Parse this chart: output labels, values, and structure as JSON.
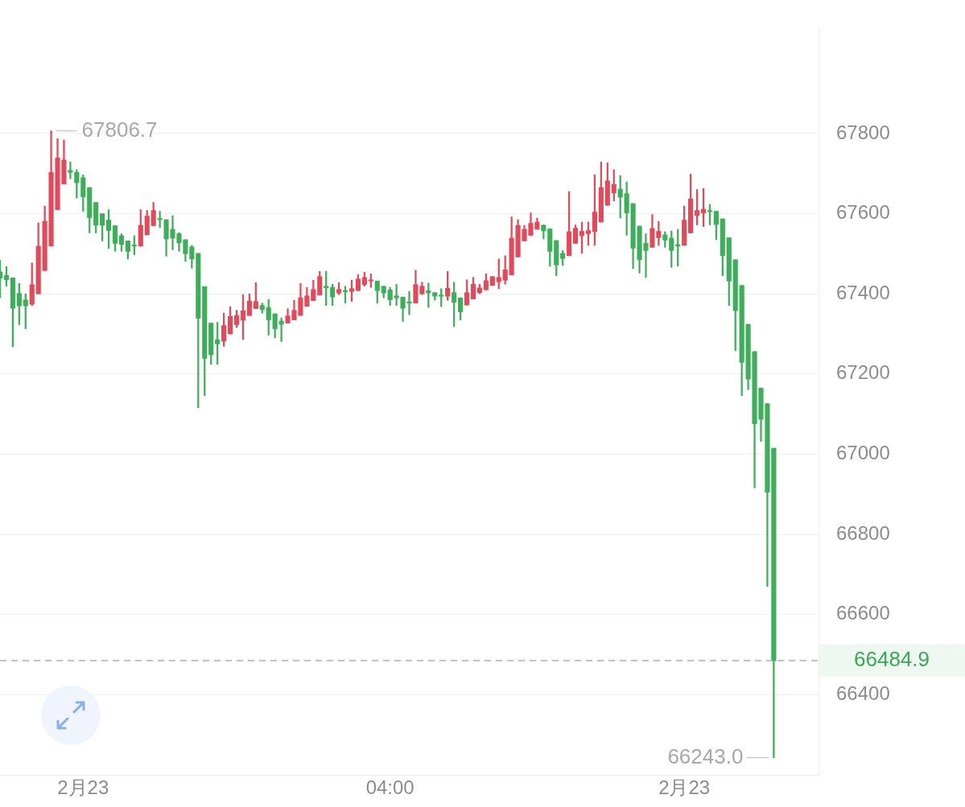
{
  "chart_data": {
    "type": "candlestick",
    "categories": [
      null,
      null,
      null,
      null,
      null,
      null,
      null,
      null,
      null,
      null,
      null,
      null,
      null,
      "2月23",
      null,
      null,
      null,
      null,
      null,
      null,
      null,
      null,
      null,
      null,
      null,
      null,
      null,
      null,
      null,
      null,
      null,
      null,
      null,
      null,
      null,
      null,
      null,
      null,
      null,
      null,
      null,
      null,
      null,
      null,
      null,
      null,
      null,
      null,
      null,
      null,
      null,
      null,
      null,
      null,
      null,
      null,
      null,
      null,
      null,
      null,
      null,
      "04:00",
      null,
      null,
      null,
      null,
      null,
      null,
      null,
      null,
      null,
      null,
      null,
      null,
      null,
      null,
      null,
      null,
      null,
      null,
      null,
      null,
      null,
      null,
      null,
      null,
      null,
      null,
      null,
      null,
      null,
      null,
      null,
      null,
      null,
      null,
      null,
      null,
      null,
      null,
      null,
      null,
      null,
      null,
      null,
      null,
      null,
      "2月23",
      null,
      null,
      null,
      null,
      null,
      null,
      null,
      null,
      null,
      null,
      null,
      null,
      null,
      null
    ],
    "ohlc": [
      [
        67455,
        67484,
        67390,
        67439
      ],
      [
        67446,
        67468,
        67419,
        67435
      ],
      [
        67440,
        67440,
        67268,
        67364
      ],
      [
        67401,
        67426,
        67323,
        67370
      ],
      [
        67385,
        67400,
        67313,
        67370
      ],
      [
        67374,
        67477,
        67371,
        67423
      ],
      [
        67400,
        67577,
        67400,
        67519
      ],
      [
        67458,
        67619,
        67458,
        67581
      ],
      [
        67519,
        67806.7,
        67519,
        67703
      ],
      [
        67610,
        67787,
        67610,
        67739
      ],
      [
        67674,
        67784,
        67674,
        67734
      ],
      [
        67708,
        67729,
        67687,
        67703
      ],
      [
        67703,
        67710,
        67639,
        67677
      ],
      [
        67690,
        67697,
        67606,
        67642
      ],
      [
        67665,
        67665,
        67552,
        67590
      ],
      [
        67628,
        67628,
        67552,
        67571
      ],
      [
        67600,
        67600,
        67532,
        67571
      ],
      [
        67584,
        67610,
        67513,
        67558
      ],
      [
        67570,
        67570,
        67506,
        67526
      ],
      [
        67545,
        67550,
        67506,
        67523
      ],
      [
        67532,
        67532,
        67487,
        67506
      ],
      [
        67522,
        67545,
        67497,
        67519
      ],
      [
        67519,
        67610,
        67519,
        67571
      ],
      [
        67547,
        67608,
        67547,
        67594
      ],
      [
        67570,
        67628,
        67570,
        67608
      ],
      [
        67588,
        67606,
        67565,
        67585
      ],
      [
        67585,
        67585,
        67494,
        67537
      ],
      [
        67561,
        67595,
        67510,
        67539
      ],
      [
        67550,
        67553,
        67506,
        67527
      ],
      [
        67535,
        67535,
        67481,
        67500
      ],
      [
        67517,
        67521,
        67464,
        67487
      ],
      [
        67501,
        67501,
        67116,
        67339
      ],
      [
        67418,
        67418,
        67146,
        67239
      ],
      [
        67327,
        67327,
        67224,
        67248
      ],
      [
        67285,
        67329,
        67224,
        67275
      ],
      [
        67282,
        67352,
        67269,
        67321
      ],
      [
        67300,
        67368,
        67300,
        67344
      ],
      [
        67323,
        67359,
        67316,
        67346
      ],
      [
        67334,
        67398,
        67286,
        67358
      ],
      [
        67346,
        67400,
        67346,
        67382
      ],
      [
        67363,
        67428,
        67363,
        67381
      ],
      [
        67371,
        67377,
        67352,
        67361
      ],
      [
        67366,
        67386,
        67297,
        67335
      ],
      [
        67350,
        67350,
        67290,
        67313
      ],
      [
        67332,
        67340,
        67281,
        67324
      ],
      [
        67327,
        67363,
        67327,
        67345
      ],
      [
        67335,
        67384,
        67335,
        67359
      ],
      [
        67346,
        67426,
        67346,
        67390
      ],
      [
        67369,
        67416,
        67369,
        67395
      ],
      [
        67383,
        67434,
        67383,
        67411
      ],
      [
        67397,
        67456,
        67397,
        67443
      ],
      [
        67419,
        67456,
        67371,
        67415
      ],
      [
        67416,
        67424,
        67371,
        67392
      ],
      [
        67402,
        67428,
        67398,
        67411
      ],
      [
        67407,
        67419,
        67377,
        67405
      ],
      [
        67406,
        67434,
        67381,
        67413
      ],
      [
        67408,
        67448,
        67408,
        67437
      ],
      [
        67423,
        67454,
        67419,
        67441
      ],
      [
        67432,
        67450,
        67416,
        67434
      ],
      [
        67432,
        67432,
        67377,
        67408
      ],
      [
        67419,
        67419,
        67390,
        67402
      ],
      [
        67410,
        67416,
        67371,
        67385
      ],
      [
        67395,
        67424,
        67371,
        67390
      ],
      [
        67392,
        67392,
        67331,
        67364
      ],
      [
        67379,
        67406,
        67348,
        67377
      ],
      [
        67377,
        67459,
        67377,
        67423
      ],
      [
        67400,
        67429,
        67398,
        67419
      ],
      [
        67408,
        67427,
        67366,
        67402
      ],
      [
        67403,
        67403,
        67384,
        67394
      ],
      [
        67397,
        67413,
        67368,
        67394
      ],
      [
        67394,
        67456,
        67384,
        67414
      ],
      [
        67403,
        67429,
        67318,
        67379
      ],
      [
        67390,
        67390,
        67335,
        67355
      ],
      [
        67372,
        67435,
        67372,
        67403
      ],
      [
        67387,
        67441,
        67387,
        67424
      ],
      [
        67403,
        67424,
        67400,
        67415
      ],
      [
        67410,
        67450,
        67410,
        67433
      ],
      [
        67421,
        67443,
        67421,
        67443
      ],
      [
        67430,
        67487,
        67413,
        67441
      ],
      [
        67434,
        67495,
        67424,
        67460
      ],
      [
        67447,
        67592,
        67447,
        67539
      ],
      [
        67492,
        67585,
        67492,
        67571
      ],
      [
        67532,
        67571,
        67532,
        67561
      ],
      [
        67546,
        67602,
        67546,
        67576
      ],
      [
        67561,
        67589,
        67561,
        67579
      ],
      [
        67571,
        67572,
        67537,
        67557
      ],
      [
        67562,
        67562,
        67469,
        67506
      ],
      [
        67533,
        67533,
        67445,
        67472
      ],
      [
        67501,
        67508,
        67471,
        67488
      ],
      [
        67495,
        67655,
        67495,
        67555
      ],
      [
        67526,
        67572,
        67526,
        67564
      ],
      [
        67545,
        67579,
        67501,
        67556
      ],
      [
        67550,
        67579,
        67521,
        67558
      ],
      [
        67555,
        67697,
        67521,
        67604
      ],
      [
        67579,
        67729,
        67579,
        67665
      ],
      [
        67621,
        67727,
        67621,
        67682
      ],
      [
        67652,
        67710,
        67632,
        67673
      ],
      [
        67661,
        67695,
        67589,
        67641
      ],
      [
        67650,
        67679,
        67546,
        67602
      ],
      [
        67625,
        67625,
        67463,
        67514
      ],
      [
        67569,
        67569,
        67452,
        67485
      ],
      [
        67526,
        67550,
        67441,
        67508
      ],
      [
        67516,
        67598,
        67516,
        67563
      ],
      [
        67540,
        67581,
        67521,
        67556
      ],
      [
        67547,
        67555,
        67516,
        67534
      ],
      [
        67539,
        67557,
        67466,
        67508
      ],
      [
        67523,
        67561,
        67469,
        67519
      ],
      [
        67521,
        67619,
        67521,
        67584
      ],
      [
        67552,
        67699,
        67552,
        67637
      ],
      [
        67595,
        67660,
        67572,
        67608
      ],
      [
        67602,
        67663,
        67568,
        67611
      ],
      [
        67607,
        67623,
        67572,
        67605
      ],
      [
        67606,
        67606,
        67535,
        67573
      ],
      [
        67587,
        67587,
        67445,
        67495
      ],
      [
        67540,
        67540,
        67371,
        67432
      ],
      [
        67485,
        67485,
        67258,
        67358
      ],
      [
        67421,
        67421,
        67146,
        67229
      ],
      [
        67324,
        67324,
        67161,
        67187
      ],
      [
        67256,
        67256,
        66916,
        67076
      ],
      [
        67165,
        67165,
        67032,
        67087
      ],
      [
        67126,
        67126,
        66670,
        66905
      ],
      [
        67015,
        67015,
        66243.0,
        66484.9
      ]
    ],
    "colors": [
      "#3fae5b",
      "#3fae5b",
      "#3fae5b",
      "#3fae5b",
      "#3fae5b",
      "#e04b5b",
      "#e04b5b",
      "#e04b5b",
      "#e04b5b",
      "#e04b5b",
      "#e04b5b",
      "#3fae5b",
      "#3fae5b",
      "#3fae5b",
      "#3fae5b",
      "#3fae5b",
      "#3fae5b",
      "#3fae5b",
      "#3fae5b",
      "#3fae5b",
      "#3fae5b",
      "#3fae5b",
      "#e04b5b",
      "#e04b5b",
      "#e04b5b",
      "#3fae5b",
      "#3fae5b",
      "#3fae5b",
      "#3fae5b",
      "#3fae5b",
      "#3fae5b",
      "#3fae5b",
      "#3fae5b",
      "#3fae5b",
      "#3fae5b",
      "#e04b5b",
      "#e04b5b",
      "#e04b5b",
      "#e04b5b",
      "#e04b5b",
      "#e04b5b",
      "#3fae5b",
      "#3fae5b",
      "#3fae5b",
      "#3fae5b",
      "#e04b5b",
      "#e04b5b",
      "#e04b5b",
      "#e04b5b",
      "#e04b5b",
      "#e04b5b",
      "#3fae5b",
      "#3fae5b",
      "#e04b5b",
      "#3fae5b",
      "#e04b5b",
      "#e04b5b",
      "#e04b5b",
      "#e04b5b",
      "#3fae5b",
      "#3fae5b",
      "#3fae5b",
      "#3fae5b",
      "#3fae5b",
      "#3fae5b",
      "#e04b5b",
      "#e04b5b",
      "#3fae5b",
      "#3fae5b",
      "#3fae5b",
      "#e04b5b",
      "#3fae5b",
      "#3fae5b",
      "#e04b5b",
      "#e04b5b",
      "#e04b5b",
      "#e04b5b",
      "#e04b5b",
      "#e04b5b",
      "#e04b5b",
      "#e04b5b",
      "#e04b5b",
      "#e04b5b",
      "#e04b5b",
      "#e04b5b",
      "#3fae5b",
      "#3fae5b",
      "#3fae5b",
      "#3fae5b",
      "#e04b5b",
      "#e04b5b",
      "#e04b5b",
      "#e04b5b",
      "#e04b5b",
      "#e04b5b",
      "#e04b5b",
      "#e04b5b",
      "#3fae5b",
      "#3fae5b",
      "#3fae5b",
      "#3fae5b",
      "#3fae5b",
      "#e04b5b",
      "#e04b5b",
      "#3fae5b",
      "#3fae5b",
      "#3fae5b",
      "#e04b5b",
      "#e04b5b",
      "#e04b5b",
      "#e04b5b",
      "#3fae5b",
      "#3fae5b",
      "#3fae5b",
      "#3fae5b",
      "#3fae5b",
      "#3fae5b",
      "#3fae5b",
      "#3fae5b",
      "#3fae5b",
      "#3fae5b",
      "#3fae5b"
    ],
    "ylim": [
      66200,
      68060
    ],
    "yticks": [
      66400,
      66600,
      66800,
      67000,
      67200,
      67400,
      67600,
      67800
    ],
    "grid": "y",
    "ref_lines": [
      {
        "axis": "y",
        "value": 66484.9,
        "label": "66484.9",
        "color": "#b0b0b0",
        "line_style": "dashed"
      }
    ],
    "annotations": [
      "67806.7",
      "66243.0"
    ]
  }
}
